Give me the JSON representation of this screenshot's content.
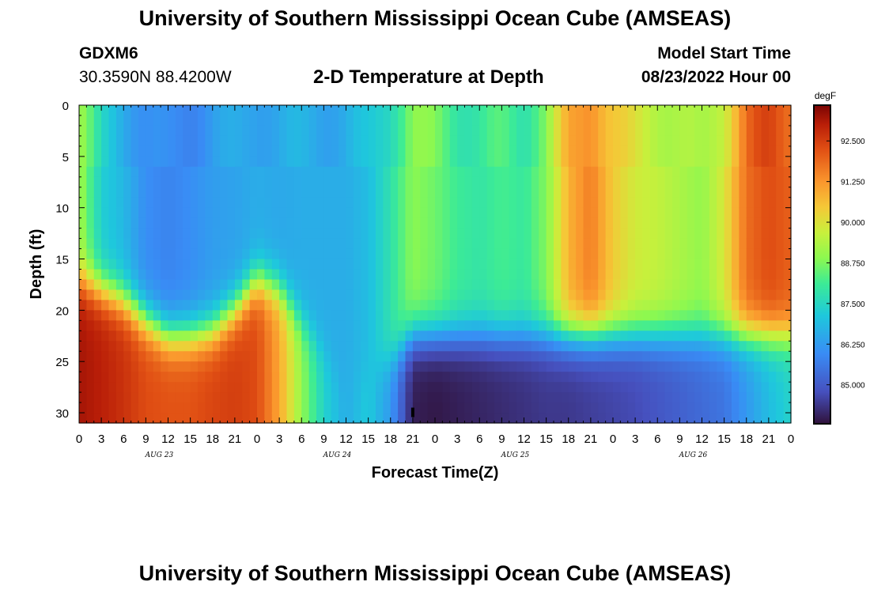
{
  "header": {
    "title": "University of Southern Mississippi Ocean Cube (AMSEAS)",
    "station_id": "GDXM6",
    "coords": "30.3590N  88.4200W",
    "chart_title": "2-D Temperature at Depth",
    "model_start_label": "Model Start Time",
    "model_start_value": "08/23/2022 Hour 00"
  },
  "footer": {
    "title": "University of Southern Mississippi Ocean Cube (AMSEAS)"
  },
  "chart_data": {
    "type": "heatmap",
    "title": "2-D Temperature at Depth",
    "xlabel": "Forecast Time(Z)",
    "ylabel": "Depth (ft)",
    "units": "degF",
    "x_hours": [
      0,
      3,
      6,
      9,
      12,
      15,
      18,
      21,
      24,
      27,
      30,
      33,
      36,
      39,
      42,
      45,
      48,
      51,
      54,
      57,
      60,
      63,
      66,
      69,
      72,
      75,
      78,
      81,
      84,
      87,
      90,
      93,
      96
    ],
    "x_tick_labels": [
      "0",
      "3",
      "6",
      "9",
      "12",
      "15",
      "18",
      "21",
      "0",
      "3",
      "6",
      "9",
      "12",
      "15",
      "18",
      "21",
      "0",
      "3",
      "6",
      "9",
      "12",
      "15",
      "18",
      "21",
      "0",
      "3",
      "6",
      "9",
      "12",
      "15",
      "18",
      "21",
      "0"
    ],
    "date_labels": [
      {
        "label": "AUG 23",
        "hour": 10.5
      },
      {
        "label": "AUG 24",
        "hour": 34.5
      },
      {
        "label": "AUG 25",
        "hour": 58.5
      },
      {
        "label": "AUG 26",
        "hour": 82.5
      }
    ],
    "xlim": [
      0,
      96
    ],
    "depth_ticks": [
      0,
      5,
      10,
      15,
      20,
      25,
      30
    ],
    "ylim": [
      0,
      31
    ],
    "colorbar": {
      "label": "degF",
      "min": 83.8,
      "max": 93.6,
      "ticks": [
        92.5,
        91.25,
        90.0,
        88.75,
        87.5,
        86.25,
        85.0
      ],
      "tick_labels": [
        "92.500",
        "91.250",
        "90.000",
        "88.750",
        "87.500",
        "86.250",
        "85.000"
      ]
    },
    "field_model": {
      "columns": [
        {
          "hour": 0,
          "surface": 89.2,
          "deep": 93.2,
          "break_depth": 17
        },
        {
          "hour": 3,
          "surface": 87.3,
          "deep": 93.0,
          "break_depth": 18
        },
        {
          "hour": 6,
          "surface": 86.8,
          "deep": 92.7,
          "break_depth": 19
        },
        {
          "hour": 9,
          "surface": 86.0,
          "deep": 92.3,
          "break_depth": 21
        },
        {
          "hour": 12,
          "surface": 85.8,
          "deep": 92.2,
          "break_depth": 22.5
        },
        {
          "hour": 15,
          "surface": 86.0,
          "deep": 92.2,
          "break_depth": 22.5
        },
        {
          "hour": 18,
          "surface": 86.3,
          "deep": 92.4,
          "break_depth": 22
        },
        {
          "hour": 21,
          "surface": 86.4,
          "deep": 92.5,
          "break_depth": 20
        },
        {
          "hour": 24,
          "surface": 86.6,
          "deep": 92.3,
          "break_depth": 17
        },
        {
          "hour": 27,
          "surface": 86.5,
          "deep": 91.0,
          "break_depth": 18
        },
        {
          "hour": 30,
          "surface": 86.6,
          "deep": 89.0,
          "break_depth": 21
        },
        {
          "hour": 33,
          "surface": 86.6,
          "deep": 87.4,
          "break_depth": 24
        },
        {
          "hour": 36,
          "surface": 86.6,
          "deep": 86.6,
          "break_depth": 28
        },
        {
          "hour": 39,
          "surface": 86.9,
          "deep": 87.2,
          "break_depth": 26
        },
        {
          "hour": 42,
          "surface": 87.8,
          "deep": 86.2,
          "break_depth": 25
        },
        {
          "hour": 45,
          "surface": 88.9,
          "deep": 84.0,
          "break_depth": 22.5
        },
        {
          "hour": 48,
          "surface": 88.6,
          "deep": 83.9,
          "break_depth": 22.5
        },
        {
          "hour": 51,
          "surface": 88.1,
          "deep": 84.0,
          "break_depth": 22.5
        },
        {
          "hour": 54,
          "surface": 87.9,
          "deep": 84.1,
          "break_depth": 22.5
        },
        {
          "hour": 57,
          "surface": 88.2,
          "deep": 84.2,
          "break_depth": 22.5
        },
        {
          "hour": 60,
          "surface": 88.0,
          "deep": 84.3,
          "break_depth": 22.5
        },
        {
          "hour": 63,
          "surface": 88.8,
          "deep": 84.4,
          "break_depth": 22.5
        },
        {
          "hour": 66,
          "surface": 90.8,
          "deep": 84.4,
          "break_depth": 22.5
        },
        {
          "hour": 69,
          "surface": 91.6,
          "deep": 84.5,
          "break_depth": 22.5
        },
        {
          "hour": 72,
          "surface": 90.4,
          "deep": 84.6,
          "break_depth": 22.5
        },
        {
          "hour": 75,
          "surface": 89.8,
          "deep": 84.7,
          "break_depth": 22.5
        },
        {
          "hour": 78,
          "surface": 89.6,
          "deep": 84.9,
          "break_depth": 22.5
        },
        {
          "hour": 81,
          "surface": 89.3,
          "deep": 85.1,
          "break_depth": 22.5
        },
        {
          "hour": 84,
          "surface": 89.0,
          "deep": 85.3,
          "break_depth": 22.5
        },
        {
          "hour": 87,
          "surface": 89.9,
          "deep": 85.5,
          "break_depth": 22.5
        },
        {
          "hour": 90,
          "surface": 91.8,
          "deep": 86.2,
          "break_depth": 22.5
        },
        {
          "hour": 93,
          "surface": 92.3,
          "deep": 86.9,
          "break_depth": 22.5
        },
        {
          "hour": 96,
          "surface": 92.0,
          "deep": 87.4,
          "break_depth": 22.5
        }
      ]
    }
  }
}
